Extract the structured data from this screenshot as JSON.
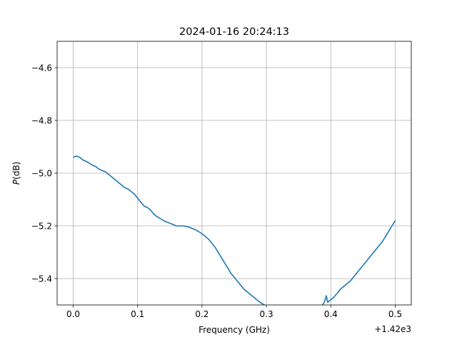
{
  "chart_data": {
    "type": "line",
    "title": "2024-01-16 20:24:13",
    "xlabel": "Frequency (GHz)",
    "ylabel_prefix": "P",
    "ylabel_suffix": "(dB)",
    "x_offset_label": "+1.42e3",
    "xlim": [
      -0.025,
      0.525
    ],
    "ylim": [
      -5.5,
      -4.5
    ],
    "xticks": [
      0.0,
      0.1,
      0.2,
      0.3,
      0.4,
      0.5
    ],
    "xtick_labels": [
      "0.0",
      "0.1",
      "0.2",
      "0.3",
      "0.4",
      "0.5"
    ],
    "yticks": [
      -4.6,
      -4.8,
      -5.0,
      -5.2,
      -5.4
    ],
    "ytick_labels": [
      "−4.6",
      "−4.8",
      "−5.0",
      "−5.2",
      "−5.4"
    ],
    "grid": true,
    "series": [
      {
        "color": "#1f77b4",
        "points": [
          [
            0.0,
            -4.94
          ],
          [
            0.005,
            -4.935
          ],
          [
            0.01,
            -4.94
          ],
          [
            0.015,
            -4.95
          ],
          [
            0.02,
            -4.955
          ],
          [
            0.025,
            -4.963
          ],
          [
            0.03,
            -4.97
          ],
          [
            0.035,
            -4.975
          ],
          [
            0.04,
            -4.985
          ],
          [
            0.045,
            -4.99
          ],
          [
            0.05,
            -4.995
          ],
          [
            0.055,
            -5.005
          ],
          [
            0.06,
            -5.015
          ],
          [
            0.065,
            -5.025
          ],
          [
            0.07,
            -5.035
          ],
          [
            0.075,
            -5.045
          ],
          [
            0.08,
            -5.055
          ],
          [
            0.085,
            -5.06
          ],
          [
            0.09,
            -5.07
          ],
          [
            0.095,
            -5.08
          ],
          [
            0.1,
            -5.095
          ],
          [
            0.105,
            -5.11
          ],
          [
            0.11,
            -5.125
          ],
          [
            0.115,
            -5.13
          ],
          [
            0.12,
            -5.14
          ],
          [
            0.125,
            -5.155
          ],
          [
            0.13,
            -5.165
          ],
          [
            0.135,
            -5.172
          ],
          [
            0.14,
            -5.18
          ],
          [
            0.145,
            -5.185
          ],
          [
            0.15,
            -5.19
          ],
          [
            0.155,
            -5.195
          ],
          [
            0.16,
            -5.2
          ],
          [
            0.165,
            -5.2
          ],
          [
            0.17,
            -5.2
          ],
          [
            0.175,
            -5.202
          ],
          [
            0.18,
            -5.205
          ],
          [
            0.185,
            -5.21
          ],
          [
            0.19,
            -5.215
          ],
          [
            0.195,
            -5.222
          ],
          [
            0.2,
            -5.23
          ],
          [
            0.205,
            -5.24
          ],
          [
            0.21,
            -5.25
          ],
          [
            0.215,
            -5.265
          ],
          [
            0.22,
            -5.28
          ],
          [
            0.225,
            -5.3
          ],
          [
            0.23,
            -5.32
          ],
          [
            0.235,
            -5.34
          ],
          [
            0.24,
            -5.36
          ],
          [
            0.245,
            -5.38
          ],
          [
            0.25,
            -5.395
          ],
          [
            0.255,
            -5.41
          ],
          [
            0.26,
            -5.425
          ],
          [
            0.265,
            -5.44
          ],
          [
            0.27,
            -5.45
          ],
          [
            0.275,
            -5.46
          ],
          [
            0.28,
            -5.47
          ],
          [
            0.285,
            -5.48
          ],
          [
            0.29,
            -5.49
          ],
          [
            0.295,
            -5.497
          ],
          [
            0.3,
            -5.505
          ],
          [
            0.305,
            -5.51
          ],
          [
            0.383,
            -5.51
          ],
          [
            0.387,
            -5.5
          ],
          [
            0.39,
            -5.49
          ],
          [
            0.393,
            -5.465
          ],
          [
            0.395,
            -5.49
          ],
          [
            0.4,
            -5.48
          ],
          [
            0.405,
            -5.47
          ],
          [
            0.41,
            -5.455
          ],
          [
            0.415,
            -5.44
          ],
          [
            0.42,
            -5.43
          ],
          [
            0.425,
            -5.42
          ],
          [
            0.43,
            -5.41
          ],
          [
            0.435,
            -5.395
          ],
          [
            0.44,
            -5.38
          ],
          [
            0.445,
            -5.365
          ],
          [
            0.45,
            -5.35
          ],
          [
            0.455,
            -5.335
          ],
          [
            0.46,
            -5.32
          ],
          [
            0.465,
            -5.305
          ],
          [
            0.47,
            -5.29
          ],
          [
            0.475,
            -5.275
          ],
          [
            0.48,
            -5.26
          ],
          [
            0.485,
            -5.24
          ],
          [
            0.49,
            -5.22
          ],
          [
            0.495,
            -5.2
          ],
          [
            0.5,
            -5.18
          ]
        ]
      }
    ]
  }
}
